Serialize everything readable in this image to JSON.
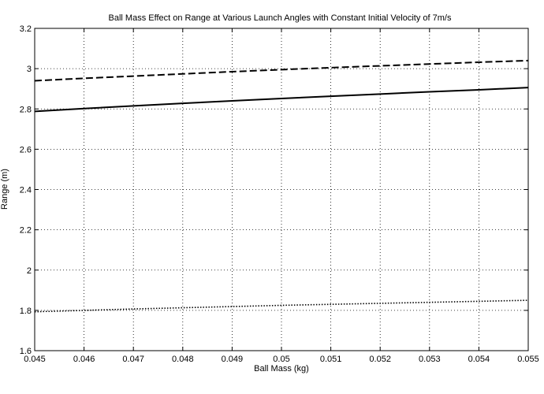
{
  "chart_data": {
    "type": "line",
    "title": "Ball Mass Effect on Range at Various Launch Angles with Constant Initial Velocity of 7m/s",
    "xlabel": "Ball Mass (kg)",
    "ylabel": "Range (m)",
    "xlim": [
      0.045,
      0.055
    ],
    "ylim": [
      1.6,
      3.2
    ],
    "xticks": [
      "0.045",
      "0.046",
      "0.047",
      "0.048",
      "0.049",
      "0.05",
      "0.051",
      "0.052",
      "0.053",
      "0.054",
      "0.055"
    ],
    "yticks": [
      "1.6",
      "1.8",
      "2",
      "2.2",
      "2.4",
      "2.6",
      "2.8",
      "3",
      "3.2"
    ],
    "grid": true,
    "series": [
      {
        "style": "dashed",
        "color": "#000000",
        "x": [
          0.045,
          0.046,
          0.047,
          0.048,
          0.049,
          0.05,
          0.051,
          0.052,
          0.053,
          0.054,
          0.055
        ],
        "y": [
          2.94,
          2.952,
          2.963,
          2.974,
          2.985,
          2.995,
          3.005,
          3.014,
          3.023,
          3.032,
          3.04
        ]
      },
      {
        "style": "solid",
        "color": "#000000",
        "x": [
          0.045,
          0.046,
          0.047,
          0.048,
          0.049,
          0.05,
          0.051,
          0.052,
          0.053,
          0.054,
          0.055
        ],
        "y": [
          2.788,
          2.802,
          2.815,
          2.828,
          2.84,
          2.852,
          2.863,
          2.874,
          2.885,
          2.895,
          2.906
        ]
      },
      {
        "style": "dotted",
        "color": "#000000",
        "x": [
          0.045,
          0.046,
          0.047,
          0.048,
          0.049,
          0.05,
          0.051,
          0.052,
          0.053,
          0.054,
          0.055
        ],
        "y": [
          1.793,
          1.8,
          1.807,
          1.813,
          1.819,
          1.825,
          1.83,
          1.835,
          1.84,
          1.845,
          1.85
        ]
      }
    ]
  }
}
